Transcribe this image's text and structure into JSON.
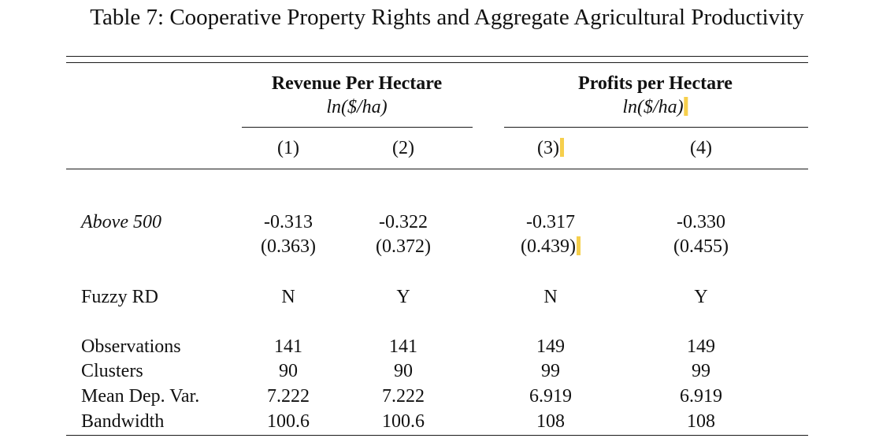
{
  "caption": "Table 7: Cooperative Property Rights and Aggregate Agricultural Productivity",
  "groups": [
    {
      "title": "Revenue Per Hectare",
      "units": "ln($/ha)"
    },
    {
      "title": "Profits per Hectare",
      "units": "ln($/ha)"
    }
  ],
  "columns": [
    "(1)",
    "(2)",
    "(3)",
    "(4)"
  ],
  "coef_row": {
    "label": "Above 500",
    "estimates": [
      "-0.313",
      "-0.322",
      "-0.317",
      "-0.330"
    ],
    "std_errors": [
      "(0.363)",
      "(0.372)",
      "(0.439)",
      "(0.455)"
    ]
  },
  "fuzzy_row": {
    "label": "Fuzzy RD",
    "values": [
      "N",
      "Y",
      "N",
      "Y"
    ]
  },
  "stat_rows": [
    {
      "label": "Observations",
      "values": [
        "141",
        "141",
        "149",
        "149"
      ]
    },
    {
      "label": "Clusters",
      "values": [
        "90",
        "90",
        "99",
        "99"
      ]
    },
    {
      "label": "Mean Dep. Var.",
      "values": [
        "7.222",
        "7.222",
        "6.919",
        "6.919"
      ]
    },
    {
      "label": "Bandwidth",
      "values": [
        "100.6",
        "100.6",
        "108",
        "108"
      ]
    }
  ],
  "highlight_color": "#f6cf4c"
}
